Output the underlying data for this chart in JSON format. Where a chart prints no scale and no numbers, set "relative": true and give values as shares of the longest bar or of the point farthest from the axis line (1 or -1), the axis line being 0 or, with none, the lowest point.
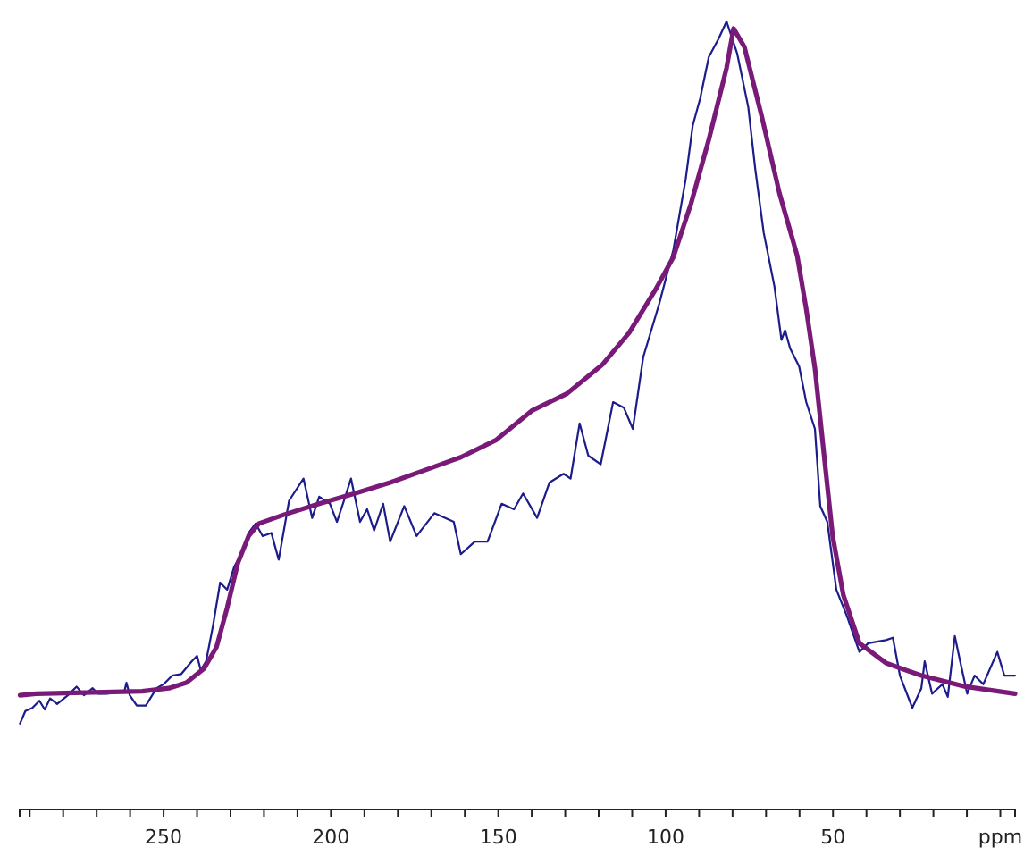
{
  "chart_data": {
    "type": "line",
    "relative": true,
    "xlim": [
      293,
      -4.4
    ],
    "xticks": [
      {
        "value": 290,
        "label": null
      },
      {
        "value": 280,
        "label": null
      },
      {
        "value": 270,
        "label": null
      },
      {
        "value": 260,
        "label": null
      },
      250,
      {
        "value": 240,
        "label": null
      },
      {
        "value": 230,
        "label": null
      },
      {
        "value": 220,
        "label": null
      },
      {
        "value": 210,
        "label": null
      },
      200,
      {
        "value": 190,
        "label": null
      },
      {
        "value": 180,
        "label": null
      },
      {
        "value": 170,
        "label": null
      },
      {
        "value": 160,
        "label": null
      },
      150,
      {
        "value": 140,
        "label": null
      },
      {
        "value": 130,
        "label": null
      },
      {
        "value": 120,
        "label": null
      },
      {
        "value": 110,
        "label": null
      },
      100,
      {
        "value": 90,
        "label": null
      },
      {
        "value": 80,
        "label": null
      },
      {
        "value": 70,
        "label": null
      },
      {
        "value": 60,
        "label": null
      },
      50,
      {
        "value": 40,
        "label": null
      },
      {
        "value": 30,
        "label": null
      },
      {
        "value": 20,
        "label": null
      },
      {
        "value": 10,
        "label": null
      },
      {
        "value": 0,
        "label": "ppm"
      }
    ],
    "series": [
      {
        "color": "#1c1c8a",
        "x": [
          292.9,
          291.3,
          289.2,
          287.1,
          285.5,
          283.9,
          281.8,
          278.6,
          276.0,
          273.8,
          271.2,
          269.6,
          267.0,
          261.7,
          261.1,
          260.1,
          258.0,
          255.3,
          252.1,
          250.0,
          247.4,
          244.7,
          241.6,
          240.0,
          238.9,
          237.3,
          235.2,
          233.1,
          231.0,
          228.9,
          226.8,
          224.6,
          222.5,
          220.4,
          217.8,
          215.6,
          212.5,
          208.2,
          205.6,
          203.5,
          200.3,
          198.2,
          196.1,
          194.0,
          191.3,
          189.2,
          187.1,
          184.4,
          182.3,
          178.1,
          174.4,
          169.1,
          163.3,
          161.2,
          157.0,
          153.2,
          149.0,
          145.3,
          142.6,
          138.4,
          134.7,
          130.5,
          128.4,
          125.7,
          123.1,
          119.4,
          115.7,
          112.5,
          109.8,
          106.7,
          101.9,
          97.7,
          94.0,
          91.9,
          89.7,
          87.1,
          84.3,
          81.8,
          78.6,
          75.3,
          73.2,
          70.7,
          67.5,
          65.4,
          64.3,
          62.8,
          60.1,
          58.0,
          55.4,
          53.8,
          51.7,
          49.0,
          45.8,
          42.1,
          39.5,
          34.2,
          32.1,
          30.0,
          26.3,
          23.6,
          22.6,
          20.4,
          17.3,
          15.7,
          13.6,
          12.0,
          9.9,
          7.7,
          5.1,
          0.9,
          -1.2,
          -4.4
        ],
        "values": [
          0.109,
          0.125,
          0.129,
          0.138,
          0.127,
          0.141,
          0.134,
          0.145,
          0.156,
          0.145,
          0.154,
          0.147,
          0.147,
          0.15,
          0.161,
          0.145,
          0.132,
          0.132,
          0.154,
          0.159,
          0.17,
          0.172,
          0.188,
          0.195,
          0.177,
          0.188,
          0.234,
          0.288,
          0.279,
          0.308,
          0.324,
          0.351,
          0.363,
          0.347,
          0.351,
          0.317,
          0.392,
          0.42,
          0.37,
          0.397,
          0.388,
          0.365,
          0.392,
          0.42,
          0.365,
          0.381,
          0.354,
          0.388,
          0.34,
          0.385,
          0.347,
          0.376,
          0.365,
          0.324,
          0.34,
          0.34,
          0.388,
          0.381,
          0.401,
          0.37,
          0.415,
          0.426,
          0.42,
          0.49,
          0.449,
          0.438,
          0.517,
          0.51,
          0.483,
          0.574,
          0.642,
          0.71,
          0.8,
          0.868,
          0.902,
          0.955,
          0.977,
          1,
          0.959,
          0.891,
          0.812,
          0.732,
          0.664,
          0.596,
          0.608,
          0.585,
          0.562,
          0.517,
          0.483,
          0.385,
          0.365,
          0.279,
          0.245,
          0.2,
          0.211,
          0.215,
          0.218,
          0.17,
          0.129,
          0.154,
          0.188,
          0.147,
          0.159,
          0.143,
          0.22,
          0.188,
          0.147,
          0.17,
          0.159,
          0.2,
          0.17,
          0.17
        ]
      },
      {
        "color": "#7a1a78",
        "x": [
          292.9,
          288.1,
          256.4,
          248.4,
          243.2,
          237.9,
          234.2,
          231.0,
          227.8,
          224.6,
          221.5,
          214.1,
          203.5,
          192.9,
          182.3,
          171.7,
          161.2,
          150.6,
          140.0,
          129.4,
          118.8,
          110.9,
          103.0,
          97.7,
          92.4,
          87.1,
          81.8,
          79.7,
          76.5,
          71.2,
          66.0,
          60.7,
          58.0,
          55.4,
          52.7,
          50.1,
          46.9,
          42.1,
          34.2,
          23.6,
          10.4,
          -4.4
        ],
        "values": [
          0.145,
          0.147,
          0.15,
          0.154,
          0.161,
          0.179,
          0.206,
          0.256,
          0.313,
          0.347,
          0.363,
          0.374,
          0.388,
          0.401,
          0.415,
          0.431,
          0.447,
          0.469,
          0.506,
          0.528,
          0.565,
          0.605,
          0.66,
          0.701,
          0.769,
          0.85,
          0.941,
          0.991,
          0.968,
          0.878,
          0.782,
          0.703,
          0.635,
          0.56,
          0.451,
          0.347,
          0.272,
          0.211,
          0.186,
          0.17,
          0.156,
          0.147
        ]
      }
    ]
  }
}
